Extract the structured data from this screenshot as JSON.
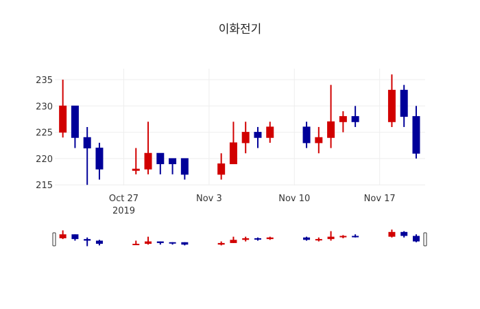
{
  "chart_data": {
    "type": "candlestick",
    "title": "이화전기",
    "xlabel": "",
    "ylabel": "",
    "ylim": [
      214,
      236.5
    ],
    "y_ticks": [
      215,
      220,
      225,
      230,
      235
    ],
    "x_ticks": [
      {
        "date": "2019-10-27",
        "label": "Oct 27",
        "sublabel": "2019"
      },
      {
        "date": "2019-11-03",
        "label": "Nov 3",
        "sublabel": ""
      },
      {
        "date": "2019-11-10",
        "label": "Nov 10",
        "sublabel": ""
      },
      {
        "date": "2019-11-17",
        "label": "Nov 17",
        "sublabel": ""
      }
    ],
    "grid": true,
    "rangeslider": true,
    "colors": {
      "increasing": "#d10000",
      "decreasing": "#000099",
      "grid": "#eeeeee"
    },
    "x": [
      "2019-10-22",
      "2019-10-23",
      "2019-10-24",
      "2019-10-25",
      "2019-10-28",
      "2019-10-29",
      "2019-10-30",
      "2019-10-31",
      "2019-11-01",
      "2019-11-04",
      "2019-11-05",
      "2019-11-06",
      "2019-11-07",
      "2019-11-08",
      "2019-11-11",
      "2019-11-12",
      "2019-11-13",
      "2019-11-14",
      "2019-11-15",
      "2019-11-18",
      "2019-11-19",
      "2019-11-20"
    ],
    "open": [
      225,
      230,
      224,
      222,
      218,
      218,
      221,
      220,
      220,
      217,
      219,
      223,
      225,
      224,
      226,
      223,
      224,
      227,
      228,
      227,
      233,
      228
    ],
    "high": [
      235,
      230,
      226,
      223,
      222,
      227,
      221,
      220,
      220,
      221,
      227,
      227,
      226,
      227,
      227,
      226,
      234,
      229,
      230,
      236,
      234,
      230
    ],
    "low": [
      224,
      222,
      215,
      216,
      217,
      217,
      217,
      217,
      216,
      216,
      219,
      221,
      222,
      223,
      222,
      221,
      222,
      225,
      226,
      226,
      226,
      220
    ],
    "close": [
      230,
      224,
      222,
      218,
      218,
      221,
      219,
      219,
      217,
      219,
      223,
      225,
      224,
      226,
      223,
      224,
      227,
      228,
      227,
      233,
      228,
      221
    ]
  }
}
